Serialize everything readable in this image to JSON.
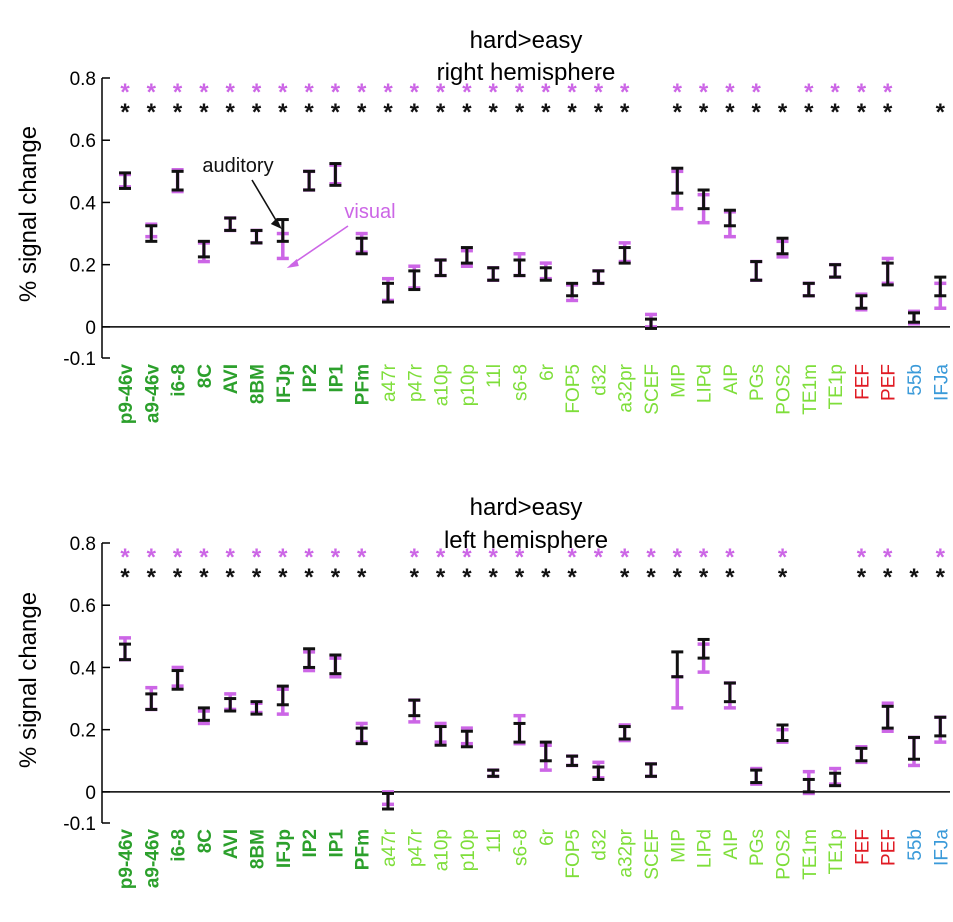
{
  "colors": {
    "auditory": "#111111",
    "visual": "#cc66e6",
    "green_dark": "#2ca02c",
    "green_light": "#7ede3a",
    "red": "#e01b24",
    "blue": "#3a9ad9",
    "axis": "#000000"
  },
  "chart_data": [
    {
      "type": "errorbar",
      "title": [
        "hard>easy",
        "right hemisphere"
      ],
      "ylabel": "% signal change",
      "ylim": [
        -0.1,
        0.8
      ],
      "yticks": [
        "0.8",
        "0.6",
        "0.4",
        "0.2",
        "0",
        "-0.1"
      ],
      "ytick_values": [
        0.8,
        0.6,
        0.4,
        0.2,
        0,
        -0.1
      ],
      "categories": [
        "p9-46v",
        "a9-46v",
        "i6-8",
        "8C",
        "AVI",
        "8BM",
        "IFJp",
        "IP2",
        "IP1",
        "PFm",
        "a47r",
        "p47r",
        "a10p",
        "p10p",
        "11l",
        "s6-8",
        "6r",
        "FOP5",
        "d32",
        "a32pr",
        "SCEF",
        "MIP",
        "LIPd",
        "AIP",
        "PGs",
        "POS2",
        "TE1m",
        "TE1p",
        "FEF",
        "PEF",
        "55b",
        "IFJa"
      ],
      "category_groups": [
        "dark",
        "dark",
        "dark",
        "dark",
        "dark",
        "dark",
        "dark",
        "dark",
        "dark",
        "dark",
        "light",
        "light",
        "light",
        "light",
        "light",
        "light",
        "light",
        "light",
        "light",
        "light",
        "light",
        "light",
        "light",
        "light",
        "light",
        "light",
        "light",
        "light",
        "red",
        "red",
        "blue",
        "blue"
      ],
      "annotations": [
        {
          "text": "auditory",
          "color": "auditory",
          "points_to": "IFJp"
        },
        {
          "text": "visual",
          "color": "visual",
          "points_to": "IFJp"
        }
      ],
      "series": [
        {
          "name": "auditory",
          "color": "auditory",
          "mean": [
            0.47,
            0.3,
            0.47,
            0.25,
            0.33,
            0.29,
            0.31,
            0.47,
            0.49,
            0.26,
            0.11,
            0.15,
            0.19,
            0.23,
            0.17,
            0.19,
            0.17,
            0.12,
            0.16,
            0.23,
            0.01,
            0.47,
            0.41,
            0.35,
            0.18,
            0.26,
            0.12,
            0.18,
            0.08,
            0.17,
            0.03,
            0.13
          ],
          "err": [
            0.025,
            0.025,
            0.03,
            0.025,
            0.02,
            0.02,
            0.035,
            0.03,
            0.035,
            0.025,
            0.03,
            0.03,
            0.025,
            0.025,
            0.02,
            0.025,
            0.02,
            0.02,
            0.02,
            0.025,
            0.015,
            0.04,
            0.03,
            0.025,
            0.03,
            0.025,
            0.02,
            0.02,
            0.02,
            0.035,
            0.015,
            0.03
          ],
          "significant": [
            true,
            true,
            true,
            true,
            true,
            true,
            true,
            true,
            true,
            true,
            true,
            true,
            true,
            true,
            true,
            true,
            true,
            true,
            true,
            true,
            false,
            true,
            true,
            true,
            true,
            true,
            true,
            true,
            true,
            true,
            false,
            true
          ]
        },
        {
          "name": "visual",
          "color": "visual",
          "mean": [
            0.47,
            0.31,
            0.47,
            0.24,
            0.33,
            0.29,
            0.26,
            0.47,
            0.49,
            0.27,
            0.12,
            0.16,
            0.19,
            0.22,
            0.17,
            0.2,
            0.18,
            0.11,
            0.16,
            0.24,
            0.02,
            0.44,
            0.38,
            0.33,
            0.18,
            0.25,
            0.12,
            0.18,
            0.08,
            0.18,
            0.03,
            0.1
          ],
          "err": [
            0.02,
            0.02,
            0.035,
            0.03,
            0.02,
            0.02,
            0.04,
            0.03,
            0.03,
            0.03,
            0.035,
            0.035,
            0.025,
            0.025,
            0.02,
            0.035,
            0.025,
            0.025,
            0.02,
            0.03,
            0.02,
            0.06,
            0.045,
            0.04,
            0.03,
            0.025,
            0.02,
            0.02,
            0.025,
            0.04,
            0.02,
            0.04
          ],
          "significant": [
            true,
            true,
            true,
            true,
            true,
            true,
            true,
            true,
            true,
            true,
            true,
            true,
            true,
            true,
            true,
            true,
            true,
            true,
            true,
            true,
            false,
            true,
            true,
            true,
            true,
            false,
            true,
            true,
            true,
            true,
            false,
            false
          ]
        }
      ]
    },
    {
      "type": "errorbar",
      "title": [
        "hard>easy",
        "left hemisphere"
      ],
      "ylabel": "% signal change",
      "ylim": [
        -0.1,
        0.8
      ],
      "yticks": [
        "0.8",
        "0.6",
        "0.4",
        "0.2",
        "0",
        "-0.1"
      ],
      "ytick_values": [
        0.8,
        0.6,
        0.4,
        0.2,
        0,
        -0.1
      ],
      "categories": [
        "p9-46v",
        "a9-46v",
        "i6-8",
        "8C",
        "AVI",
        "8BM",
        "IFJp",
        "IP2",
        "IP1",
        "PFm",
        "a47r",
        "p47r",
        "a10p",
        "p10p",
        "11l",
        "s6-8",
        "6r",
        "FOP5",
        "d32",
        "a32pr",
        "SCEF",
        "MIP",
        "LIPd",
        "AIP",
        "PGs",
        "POS2",
        "TE1m",
        "TE1p",
        "FEF",
        "PEF",
        "55b",
        "IFJa"
      ],
      "category_groups": [
        "dark",
        "dark",
        "dark",
        "dark",
        "dark",
        "dark",
        "dark",
        "dark",
        "dark",
        "dark",
        "light",
        "light",
        "light",
        "light",
        "light",
        "light",
        "light",
        "light",
        "light",
        "light",
        "light",
        "light",
        "light",
        "light",
        "light",
        "light",
        "light",
        "light",
        "red",
        "red",
        "blue",
        "blue"
      ],
      "annotations": [],
      "series": [
        {
          "name": "auditory",
          "color": "auditory",
          "mean": [
            0.45,
            0.29,
            0.36,
            0.25,
            0.28,
            0.27,
            0.31,
            0.43,
            0.41,
            0.18,
            -0.03,
            0.27,
            0.18,
            0.17,
            0.06,
            0.19,
            0.13,
            0.1,
            0.06,
            0.19,
            0.07,
            0.41,
            0.46,
            0.32,
            0.05,
            0.19,
            0.02,
            0.04,
            0.12,
            0.24,
            0.14,
            0.21
          ],
          "err": [
            0.025,
            0.025,
            0.03,
            0.02,
            0.02,
            0.02,
            0.03,
            0.03,
            0.03,
            0.025,
            0.025,
            0.025,
            0.03,
            0.025,
            0.01,
            0.03,
            0.03,
            0.015,
            0.02,
            0.02,
            0.02,
            0.04,
            0.03,
            0.03,
            0.02,
            0.025,
            0.02,
            0.02,
            0.02,
            0.035,
            0.035,
            0.03
          ],
          "significant": [
            true,
            true,
            true,
            true,
            true,
            true,
            true,
            true,
            true,
            true,
            false,
            true,
            true,
            true,
            true,
            true,
            true,
            true,
            false,
            true,
            true,
            true,
            true,
            true,
            false,
            true,
            false,
            false,
            true,
            true,
            true,
            true
          ]
        },
        {
          "name": "visual",
          "color": "visual",
          "mean": [
            0.46,
            0.3,
            0.37,
            0.24,
            0.29,
            0.27,
            0.29,
            0.42,
            0.4,
            0.19,
            -0.02,
            0.26,
            0.19,
            0.18,
            0.06,
            0.2,
            0.11,
            0.1,
            0.07,
            0.19,
            0.07,
            0.32,
            0.43,
            0.31,
            0.05,
            0.18,
            0.03,
            0.05,
            0.12,
            0.24,
            0.13,
            0.2
          ],
          "err": [
            0.035,
            0.035,
            0.03,
            0.02,
            0.025,
            0.015,
            0.04,
            0.03,
            0.03,
            0.03,
            0.02,
            0.035,
            0.03,
            0.025,
            0.01,
            0.045,
            0.04,
            0.015,
            0.025,
            0.025,
            0.02,
            0.05,
            0.045,
            0.04,
            0.025,
            0.02,
            0.035,
            0.025,
            0.025,
            0.045,
            0.045,
            0.04
          ],
          "significant": [
            true,
            true,
            true,
            true,
            true,
            true,
            true,
            true,
            true,
            true,
            false,
            true,
            true,
            true,
            true,
            true,
            false,
            true,
            true,
            true,
            true,
            true,
            true,
            true,
            false,
            true,
            false,
            false,
            true,
            true,
            false,
            true
          ]
        }
      ]
    }
  ]
}
